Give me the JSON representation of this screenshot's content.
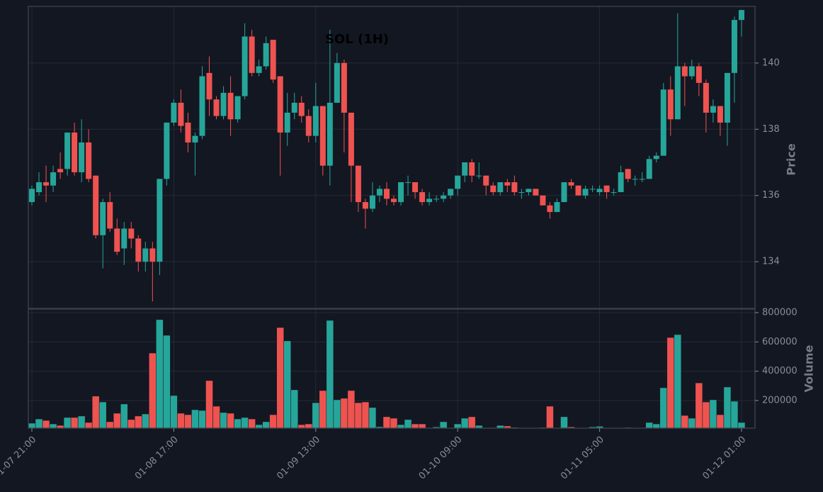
{
  "chart_data": {
    "type": "candlestick",
    "title": "SOL (1H)",
    "xticks": [
      {
        "value": 0,
        "label": "01-07 21:00"
      },
      {
        "value": 20,
        "label": "01-08 17:00"
      },
      {
        "value": 40,
        "label": "01-09 13:00"
      },
      {
        "value": 60,
        "label": "01-10 09:00"
      },
      {
        "value": 80,
        "label": "01-11 05:00"
      },
      {
        "value": 100,
        "label": "01-12 01:00"
      }
    ],
    "xlim": [
      -0.5,
      101.9
    ],
    "open": [
      135.8,
      136.1,
      136.4,
      136.3,
      136.8,
      136.8,
      137.9,
      136.7,
      137.6,
      136.6,
      134.8,
      135.8,
      135.0,
      134.4,
      135.0,
      134.7,
      134.0,
      134.4,
      134.0,
      136.5,
      138.2,
      138.8,
      138.2,
      137.6,
      137.8,
      139.7,
      138.9,
      138.4,
      139.1,
      138.3,
      139.0,
      140.8,
      139.7,
      139.9,
      140.7,
      139.6,
      137.9,
      138.5,
      138.8,
      138.4,
      137.8,
      138.7,
      136.9,
      138.8,
      140.0,
      138.5,
      136.9,
      135.8,
      135.6,
      136.0,
      136.2,
      135.9,
      135.8,
      136.4,
      136.4,
      136.1,
      135.8,
      135.9,
      135.9,
      136.0,
      136.2,
      136.6,
      137.0,
      136.6,
      136.6,
      136.3,
      136.1,
      136.4,
      136.4,
      136.1,
      136.1,
      136.2,
      136.0,
      135.7,
      135.5,
      135.8,
      136.4,
      136.3,
      136.0,
      136.2,
      136.1,
      136.3,
      136.1,
      136.1,
      136.8,
      136.5,
      136.5,
      136.5,
      137.1,
      137.2,
      139.2,
      138.3,
      139.9,
      139.6,
      139.9,
      139.4,
      138.5,
      138.7,
      138.2,
      139.7,
      141.3
    ],
    "high": [
      136.3,
      136.7,
      136.9,
      136.9,
      137.3,
      137.9,
      138.2,
      138.3,
      138.0,
      136.6,
      135.9,
      136.1,
      135.3,
      135.2,
      135.2,
      134.8,
      134.6,
      134.6,
      136.5,
      138.2,
      138.9,
      139.2,
      138.5,
      137.9,
      139.9,
      140.2,
      139.0,
      139.3,
      139.6,
      139.0,
      141.2,
      141.0,
      140.1,
      140.8,
      140.7,
      139.6,
      139.1,
      139.1,
      139.0,
      138.6,
      139.4,
      138.7,
      141.0,
      140.3,
      140.1,
      138.5,
      136.9,
      135.9,
      136.4,
      136.3,
      136.4,
      136.0,
      136.4,
      136.6,
      136.4,
      136.2,
      136.1,
      136.0,
      136.1,
      136.2,
      136.6,
      137.0,
      137.1,
      137.0,
      136.6,
      136.4,
      136.4,
      136.5,
      136.6,
      136.2,
      136.2,
      136.2,
      136.0,
      135.8,
      135.9,
      136.4,
      136.5,
      136.3,
      136.3,
      136.3,
      136.3,
      136.3,
      136.2,
      136.9,
      136.8,
      136.6,
      136.7,
      137.2,
      137.3,
      139.4,
      139.6,
      141.5,
      140.0,
      140.1,
      140.0,
      139.5,
      138.9,
      138.7,
      139.7,
      141.4,
      141.6
    ],
    "low": [
      135.7,
      136.0,
      135.8,
      136.1,
      136.5,
      136.6,
      136.6,
      136.4,
      136.4,
      134.7,
      133.8,
      134.9,
      134.2,
      133.9,
      134.4,
      133.7,
      133.7,
      132.8,
      133.6,
      136.3,
      138.1,
      137.9,
      137.3,
      136.6,
      137.7,
      138.4,
      138.3,
      138.3,
      137.8,
      138.2,
      138.9,
      139.6,
      139.6,
      139.8,
      139.4,
      136.6,
      137.5,
      138.3,
      138.2,
      137.6,
      137.6,
      136.6,
      136.3,
      138.8,
      137.3,
      135.8,
      135.5,
      135.0,
      135.5,
      135.8,
      135.7,
      135.7,
      135.7,
      136.0,
      135.9,
      135.7,
      135.7,
      135.8,
      135.8,
      135.9,
      136.0,
      136.4,
      136.4,
      136.5,
      136.0,
      136.0,
      136.0,
      136.1,
      136.0,
      135.9,
      136.0,
      136.0,
      135.7,
      135.3,
      135.5,
      135.8,
      136.2,
      136.0,
      135.9,
      136.1,
      136.0,
      135.9,
      136.0,
      136.1,
      136.4,
      136.3,
      136.4,
      136.5,
      137.0,
      137.2,
      137.8,
      138.3,
      138.7,
      139.5,
      139.0,
      137.9,
      138.2,
      137.8,
      137.5,
      138.8,
      140.8
    ],
    "close": [
      136.2,
      136.4,
      136.3,
      136.7,
      136.7,
      137.9,
      136.7,
      137.6,
      136.5,
      134.8,
      135.8,
      135.0,
      134.3,
      135.0,
      134.7,
      134.0,
      134.4,
      134.0,
      136.5,
      138.2,
      138.8,
      138.1,
      137.6,
      137.8,
      139.6,
      138.9,
      138.4,
      139.1,
      138.3,
      139.0,
      140.8,
      139.7,
      139.9,
      140.6,
      139.5,
      137.9,
      138.5,
      138.8,
      138.4,
      137.8,
      138.7,
      136.9,
      138.8,
      140.0,
      138.5,
      136.9,
      135.8,
      135.6,
      136.0,
      136.2,
      135.9,
      135.8,
      136.4,
      136.4,
      136.1,
      135.8,
      135.9,
      135.9,
      136.0,
      136.2,
      136.6,
      137.0,
      136.6,
      136.6,
      136.3,
      136.1,
      136.4,
      136.3,
      136.1,
      136.1,
      136.2,
      136.0,
      135.7,
      135.5,
      135.8,
      136.4,
      136.3,
      136.0,
      136.2,
      136.2,
      136.2,
      136.1,
      136.1,
      136.7,
      136.5,
      136.5,
      136.5,
      137.1,
      137.2,
      139.2,
      138.3,
      139.9,
      139.6,
      139.9,
      139.4,
      138.5,
      138.7,
      138.2,
      139.7,
      141.3,
      141.6
    ],
    "volume": [
      45000,
      74000,
      64000,
      40000,
      30000,
      84000,
      84000,
      94000,
      50000,
      230000,
      190000,
      55000,
      113000,
      176000,
      70000,
      94000,
      108000,
      524000,
      752000,
      645000,
      234000,
      113000,
      103000,
      137000,
      132000,
      336000,
      161000,
      118000,
      113000,
      74000,
      84000,
      74000,
      35000,
      55000,
      103000,
      698000,
      607000,
      273000,
      35000,
      40000,
      185000,
      268000,
      747000,
      205000,
      215000,
      268000,
      185000,
      190000,
      152000,
      21000,
      89000,
      79000,
      35000,
      70000,
      40000,
      40000,
      11000,
      20000,
      55000,
      12000,
      40000,
      79000,
      89000,
      30000,
      15000,
      15000,
      30000,
      26000,
      17000,
      12000,
      13000,
      12000,
      16000,
      161000,
      12000,
      89000,
      20000,
      12000,
      12000,
      20000,
      24000,
      12000,
      12000,
      12000,
      16000,
      12000,
      12000,
      50000,
      40000,
      287000,
      630000,
      650000,
      98000,
      79000,
      320000,
      190000,
      205000,
      103000,
      292000,
      195000,
      50000
    ],
    "up_color": "#26a69a",
    "down_color": "#ef5350",
    "ylabel": "Price",
    "ylim": [
      132.59,
      141.71
    ],
    "yticks": [
      134,
      136,
      138,
      140
    ],
    "volume_label": "Volume",
    "volume_ylim": [
      11000,
      824000
    ],
    "volume_yticks": [
      200000,
      400000,
      600000,
      800000
    ],
    "grid": true
  }
}
